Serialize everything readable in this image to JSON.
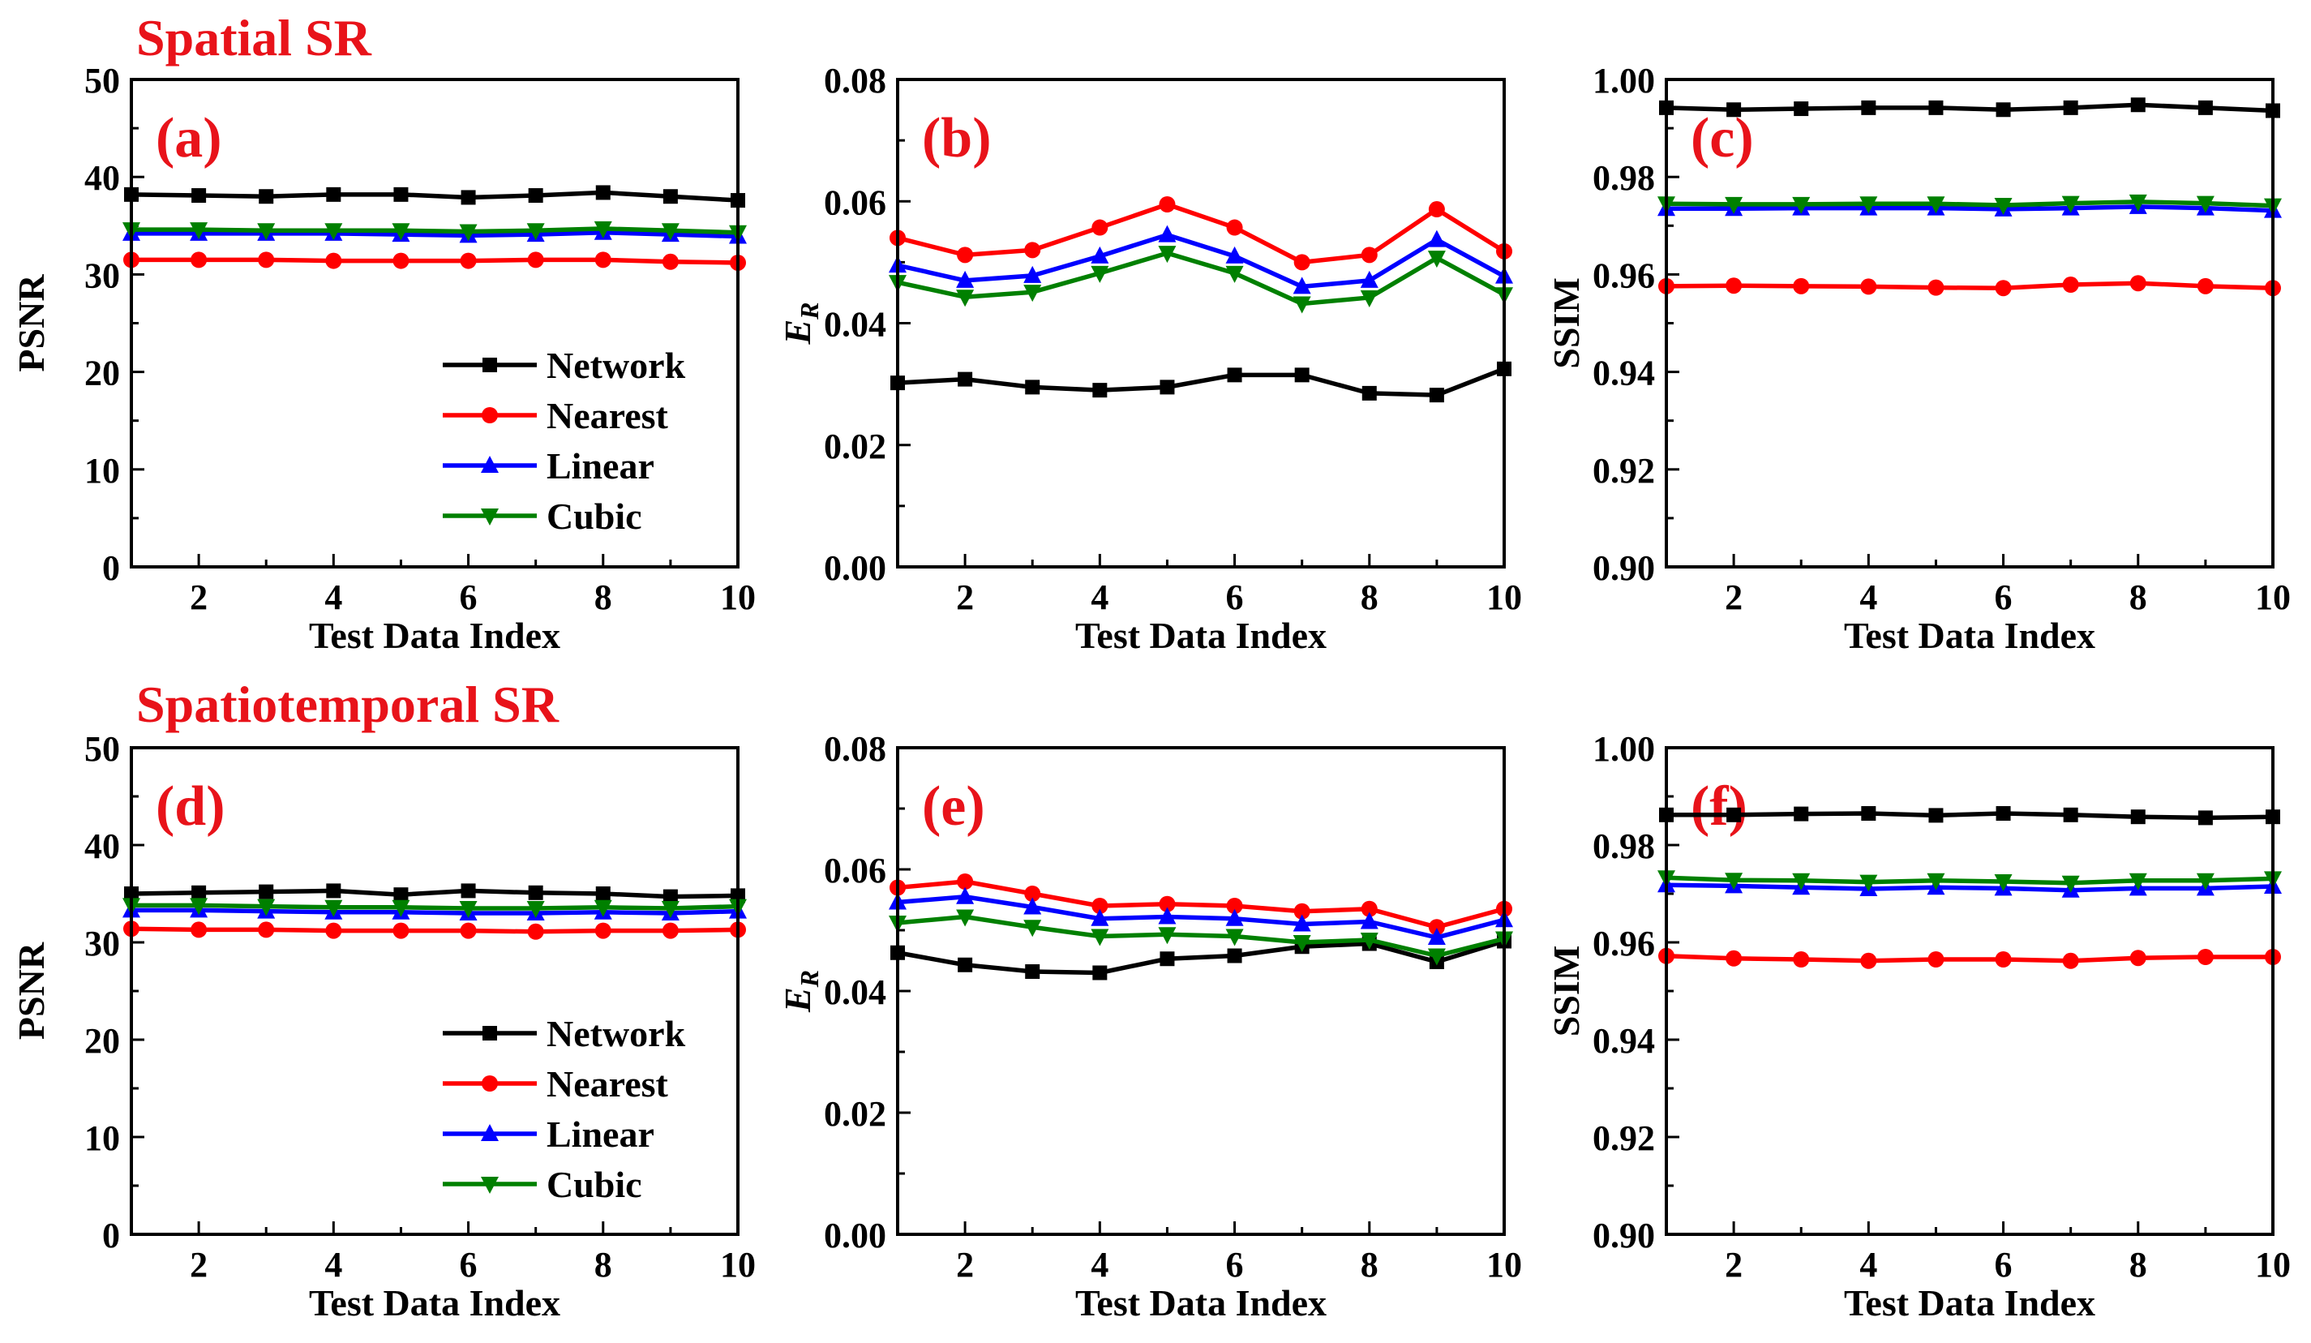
{
  "sections": {
    "top": "Spatial SR",
    "bottom": "Spatiotemporal SR"
  },
  "colors": {
    "Network": "#000000",
    "Nearest": "#ff0000",
    "Linear": "#0000ff",
    "Cubic": "#008000",
    "section_title": "#e8131a"
  },
  "chart_data": [
    {
      "id": "a",
      "type": "line",
      "panel_label": "(a)",
      "xlabel": "Test Data Index",
      "ylabel": "PSNR",
      "xlim": [
        1,
        10
      ],
      "ylim": [
        0,
        50
      ],
      "grid": false,
      "legend": "bottom-right",
      "xticks": [
        "2",
        "4",
        "6",
        "8",
        "10"
      ],
      "yticks": [
        "0",
        "10",
        "20",
        "30",
        "40",
        "50"
      ],
      "x": [
        1,
        2,
        3,
        4,
        5,
        6,
        7,
        8,
        9,
        10
      ],
      "series": [
        {
          "name": "Network",
          "marker": "square",
          "values": [
            38.2,
            38.1,
            38.0,
            38.2,
            38.2,
            37.9,
            38.1,
            38.4,
            38.0,
            37.6
          ]
        },
        {
          "name": "Nearest",
          "marker": "circle",
          "values": [
            31.5,
            31.5,
            31.5,
            31.4,
            31.4,
            31.4,
            31.5,
            31.5,
            31.3,
            31.2
          ]
        },
        {
          "name": "Linear",
          "marker": "triangle-up",
          "values": [
            34.2,
            34.2,
            34.2,
            34.2,
            34.1,
            34.0,
            34.1,
            34.3,
            34.1,
            33.9
          ]
        },
        {
          "name": "Cubic",
          "marker": "triangle-down",
          "values": [
            34.6,
            34.6,
            34.5,
            34.5,
            34.5,
            34.4,
            34.5,
            34.7,
            34.5,
            34.3
          ]
        }
      ]
    },
    {
      "id": "b",
      "type": "line",
      "panel_label": "(b)",
      "xlabel": "Test Data Index",
      "ylabel": "E",
      "ylabel_sub": "R",
      "xlim": [
        1,
        10
      ],
      "ylim": [
        0,
        0.08
      ],
      "grid": false,
      "xticks": [
        "2",
        "4",
        "6",
        "8",
        "10"
      ],
      "yticks": [
        "0.00",
        "0.02",
        "0.04",
        "0.06",
        "0.08"
      ],
      "x": [
        1,
        2,
        3,
        4,
        5,
        6,
        7,
        8,
        9,
        10
      ],
      "series": [
        {
          "name": "Network",
          "marker": "square",
          "values": [
            0.0302,
            0.0308,
            0.0295,
            0.029,
            0.0295,
            0.0315,
            0.0315,
            0.0285,
            0.0282,
            0.0325
          ]
        },
        {
          "name": "Nearest",
          "marker": "circle",
          "values": [
            0.054,
            0.0512,
            0.052,
            0.0557,
            0.0595,
            0.0557,
            0.05,
            0.0512,
            0.0587,
            0.0518
          ]
        },
        {
          "name": "Linear",
          "marker": "triangle-up",
          "values": [
            0.0495,
            0.047,
            0.0478,
            0.051,
            0.0545,
            0.051,
            0.046,
            0.047,
            0.0537,
            0.0477
          ]
        },
        {
          "name": "Cubic",
          "marker": "triangle-down",
          "values": [
            0.0467,
            0.0443,
            0.0451,
            0.0482,
            0.0515,
            0.0482,
            0.0432,
            0.0442,
            0.0507,
            0.0447
          ]
        }
      ]
    },
    {
      "id": "c",
      "type": "line",
      "panel_label": "(c)",
      "xlabel": "Test Data Index",
      "ylabel": "SSIM",
      "xlim": [
        1,
        10
      ],
      "ylim": [
        0.9,
        1.0
      ],
      "grid": false,
      "xticks": [
        "2",
        "4",
        "6",
        "8",
        "10"
      ],
      "yticks": [
        "0.90",
        "0.92",
        "0.94",
        "0.96",
        "0.98",
        "1.00"
      ],
      "x": [
        1,
        2,
        3,
        4,
        5,
        6,
        7,
        8,
        9,
        10
      ],
      "series": [
        {
          "name": "Network",
          "marker": "square",
          "values": [
            0.9942,
            0.9938,
            0.994,
            0.9942,
            0.9942,
            0.9938,
            0.9942,
            0.9948,
            0.9942,
            0.9936
          ]
        },
        {
          "name": "Nearest",
          "marker": "circle",
          "values": [
            0.9576,
            0.9577,
            0.9576,
            0.9575,
            0.9573,
            0.9572,
            0.9579,
            0.9582,
            0.9576,
            0.9572
          ]
        },
        {
          "name": "Linear",
          "marker": "triangle-up",
          "values": [
            0.9735,
            0.9735,
            0.9736,
            0.9736,
            0.9736,
            0.9734,
            0.9736,
            0.9739,
            0.9736,
            0.9731
          ]
        },
        {
          "name": "Cubic",
          "marker": "triangle-down",
          "values": [
            0.9745,
            0.9744,
            0.9744,
            0.9745,
            0.9745,
            0.9742,
            0.9746,
            0.9749,
            0.9746,
            0.9741
          ]
        }
      ]
    },
    {
      "id": "d",
      "type": "line",
      "panel_label": "(d)",
      "xlabel": "Test Data Index",
      "ylabel": "PSNR",
      "xlim": [
        1,
        10
      ],
      "ylim": [
        0,
        50
      ],
      "grid": false,
      "legend": "bottom-right",
      "xticks": [
        "2",
        "4",
        "6",
        "8",
        "10"
      ],
      "yticks": [
        "0",
        "10",
        "20",
        "30",
        "40",
        "50"
      ],
      "x": [
        1,
        2,
        3,
        4,
        5,
        6,
        7,
        8,
        9,
        10
      ],
      "series": [
        {
          "name": "Network",
          "marker": "square",
          "values": [
            35.0,
            35.1,
            35.2,
            35.3,
            34.9,
            35.3,
            35.1,
            35.0,
            34.7,
            34.8
          ]
        },
        {
          "name": "Nearest",
          "marker": "circle",
          "values": [
            31.4,
            31.3,
            31.3,
            31.2,
            31.2,
            31.2,
            31.1,
            31.2,
            31.2,
            31.3
          ]
        },
        {
          "name": "Linear",
          "marker": "triangle-up",
          "values": [
            33.3,
            33.3,
            33.2,
            33.1,
            33.1,
            33.0,
            33.0,
            33.1,
            33.0,
            33.2
          ]
        },
        {
          "name": "Cubic",
          "marker": "triangle-down",
          "values": [
            33.8,
            33.8,
            33.7,
            33.6,
            33.6,
            33.5,
            33.5,
            33.6,
            33.5,
            33.7
          ]
        }
      ]
    },
    {
      "id": "e",
      "type": "line",
      "panel_label": "(e)",
      "xlabel": "Test Data Index",
      "ylabel": "E",
      "ylabel_sub": "R",
      "xlim": [
        1,
        10
      ],
      "ylim": [
        0,
        0.08
      ],
      "grid": false,
      "xticks": [
        "2",
        "4",
        "6",
        "8",
        "10"
      ],
      "yticks": [
        "0.00",
        "0.02",
        "0.04",
        "0.06",
        "0.08"
      ],
      "x": [
        1,
        2,
        3,
        4,
        5,
        6,
        7,
        8,
        9,
        10
      ],
      "series": [
        {
          "name": "Network",
          "marker": "square",
          "values": [
            0.0463,
            0.0443,
            0.0432,
            0.043,
            0.0453,
            0.0458,
            0.0473,
            0.0478,
            0.0448,
            0.0482
          ]
        },
        {
          "name": "Nearest",
          "marker": "circle",
          "values": [
            0.057,
            0.058,
            0.056,
            0.054,
            0.0543,
            0.054,
            0.0531,
            0.0535,
            0.0505,
            0.0535
          ]
        },
        {
          "name": "Linear",
          "marker": "triangle-up",
          "values": [
            0.0546,
            0.0555,
            0.0538,
            0.0519,
            0.0522,
            0.0519,
            0.051,
            0.0514,
            0.0488,
            0.0517
          ]
        },
        {
          "name": "Cubic",
          "marker": "triangle-down",
          "values": [
            0.0512,
            0.0522,
            0.0505,
            0.049,
            0.0493,
            0.049,
            0.048,
            0.0484,
            0.0458,
            0.0486
          ]
        }
      ]
    },
    {
      "id": "f",
      "type": "line",
      "panel_label": "(f)",
      "xlabel": "Test Data Index",
      "ylabel": "SSIM",
      "xlim": [
        1,
        10
      ],
      "ylim": [
        0.9,
        1.0
      ],
      "grid": false,
      "xticks": [
        "2",
        "4",
        "6",
        "8",
        "10"
      ],
      "yticks": [
        "0.90",
        "0.92",
        "0.94",
        "0.96",
        "0.98",
        "1.00"
      ],
      "x": [
        1,
        2,
        3,
        4,
        5,
        6,
        7,
        8,
        9,
        10
      ],
      "series": [
        {
          "name": "Network",
          "marker": "square",
          "values": [
            0.9862,
            0.9862,
            0.9864,
            0.9865,
            0.9861,
            0.9865,
            0.9862,
            0.9858,
            0.9856,
            0.9858
          ]
        },
        {
          "name": "Nearest",
          "marker": "circle",
          "values": [
            0.9572,
            0.9567,
            0.9565,
            0.9562,
            0.9565,
            0.9565,
            0.9562,
            0.9568,
            0.957,
            0.957
          ]
        },
        {
          "name": "Linear",
          "marker": "triangle-up",
          "values": [
            0.9718,
            0.9716,
            0.9713,
            0.971,
            0.9713,
            0.9711,
            0.9707,
            0.9711,
            0.9711,
            0.9715
          ]
        },
        {
          "name": "Cubic",
          "marker": "triangle-down",
          "values": [
            0.9733,
            0.9728,
            0.9727,
            0.9724,
            0.9727,
            0.9725,
            0.9722,
            0.9727,
            0.9727,
            0.9731
          ]
        }
      ]
    }
  ]
}
